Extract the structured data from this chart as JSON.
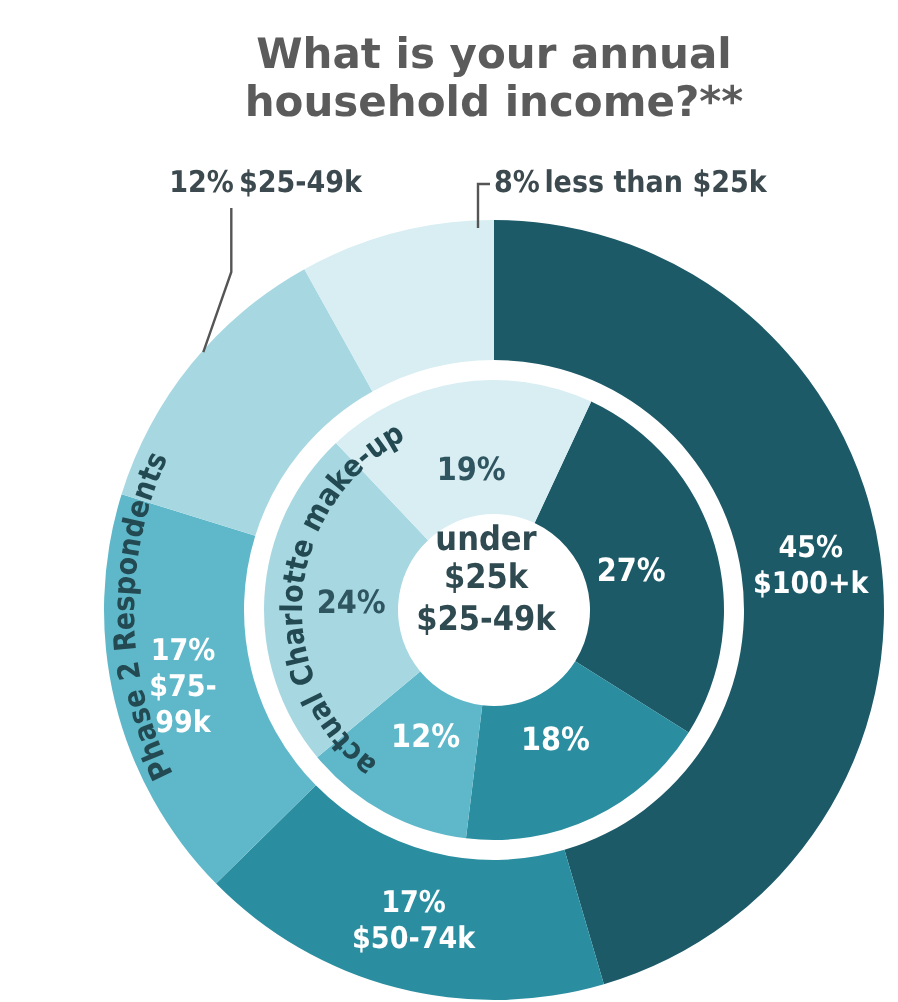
{
  "chart_data": {
    "type": "donut",
    "title": "What is your annual household income?**",
    "categories": [
      "$100+k",
      "$50-74k",
      "$75-99k",
      "$25-49k",
      "less than $25k"
    ],
    "series": [
      {
        "name": "Phase 2 Respondents",
        "values": [
          45,
          17,
          17,
          12,
          8
        ],
        "colors": [
          "#1c5a68",
          "#2a8ea0",
          "#5fb8c9",
          "#a7d8e2",
          "#d8eef3"
        ],
        "value_labels": [
          "45%",
          "17%",
          "17%",
          "12%",
          "8%"
        ]
      },
      {
        "name": "actual Charlotte make-up",
        "values": [
          27,
          18,
          12,
          24,
          19
        ],
        "colors": [
          "#1c5a68",
          "#2a8ea0",
          "#5fb8c9",
          "#a7d8e2",
          "#d8eef3"
        ],
        "value_labels": [
          "27%",
          "18%",
          "12%",
          "24%",
          "19%"
        ]
      }
    ],
    "annotations": [
      "under\n$25k",
      "$25-49k"
    ]
  }
}
